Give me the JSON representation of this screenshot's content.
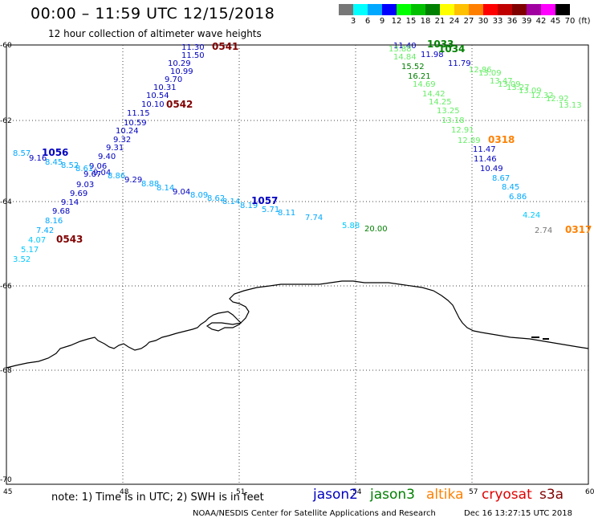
{
  "title": "00:00 – 11:59 UTC 12/15/2018",
  "subtitle": "12 hour collection of altimeter wave heights",
  "scale": {
    "labels": [
      "3",
      "6",
      "9",
      "12",
      "15",
      "18",
      "21",
      "24",
      "27",
      "30",
      "33",
      "36",
      "39",
      "42",
      "45",
      "70",
      "(ft)"
    ],
    "colors": [
      "#777777",
      "#00ffff",
      "#00a8ff",
      "#0000ff",
      "#00ff00",
      "#00c000",
      "#008000",
      "#ffff00",
      "#ffc000",
      "#ff8000",
      "#ff0000",
      "#c00000",
      "#800000",
      "#a000a0",
      "#ff00ff",
      "#000000"
    ]
  },
  "axes": {
    "lat_ticks": [
      "-60",
      "-62",
      "-64",
      "-66",
      "-68",
      "-70"
    ],
    "lon_ticks": [
      "45",
      "48",
      "51",
      "54",
      "57",
      "60"
    ]
  },
  "tracks": [
    {
      "time": "0541",
      "time_color": "#800000",
      "points": [
        {
          "v": "11.30",
          "c": "#0000c0"
        },
        {
          "v": "11.50",
          "c": "#0000c0"
        },
        {
          "v": "10.29",
          "c": "#0000c0"
        },
        {
          "v": "10.99",
          "c": "#0000c0"
        },
        {
          "v": "9.70",
          "c": "#0000c0"
        },
        {
          "v": "10.31",
          "c": "#0000c0"
        },
        {
          "v": "10.54",
          "c": "#0000c0"
        },
        {
          "v": "10.10",
          "c": "#0000c0"
        }
      ]
    },
    {
      "time": "0542",
      "time_color": "#800000",
      "points": [
        {
          "v": "11.15",
          "c": "#0000c0"
        },
        {
          "v": "10.59",
          "c": "#0000c0"
        },
        {
          "v": "10.24",
          "c": "#0000c0"
        },
        {
          "v": "9.32",
          "c": "#0000c0"
        },
        {
          "v": "9.31",
          "c": "#0000c0"
        },
        {
          "v": "9.40",
          "c": "#0000c0"
        },
        {
          "v": "9.06",
          "c": "#0000c0"
        },
        {
          "v": "9.67",
          "c": "#0000c0"
        },
        {
          "v": "9.03",
          "c": "#0000c0"
        },
        {
          "v": "9.69",
          "c": "#0000c0"
        },
        {
          "v": "9.14",
          "c": "#0000c0"
        },
        {
          "v": "9.68",
          "c": "#0000c0"
        }
      ]
    },
    {
      "time": "0543",
      "time_color": "#800000",
      "points": [
        {
          "v": "8.16",
          "c": "#00a8ff"
        },
        {
          "v": "7.42",
          "c": "#00a8ff"
        },
        {
          "v": "4.07",
          "c": "#00c8ff"
        },
        {
          "v": "5.17",
          "c": "#00c8ff"
        },
        {
          "v": "3.52",
          "c": "#00c8ff"
        }
      ]
    },
    {
      "time": "1056",
      "time_color": "#0000c0",
      "points": [
        {
          "v": "8.57",
          "c": "#00a8ff"
        },
        {
          "v": "9.16",
          "c": "#0000c0"
        },
        {
          "v": "8.45",
          "c": "#00a8ff"
        },
        {
          "v": "8.52",
          "c": "#00a8ff"
        },
        {
          "v": "8.61",
          "c": "#00a8ff"
        },
        {
          "v": "9.04",
          "c": "#0000c0"
        },
        {
          "v": "8.86",
          "c": "#00a8ff"
        },
        {
          "v": "9.29",
          "c": "#0000c0"
        },
        {
          "v": "8.88",
          "c": "#00a8ff"
        },
        {
          "v": "8.14",
          "c": "#00a8ff"
        },
        {
          "v": "9.04",
          "c": "#0000c0"
        },
        {
          "v": "8.09",
          "c": "#00a8ff"
        },
        {
          "v": "8.62",
          "c": "#00a8ff"
        },
        {
          "v": "8.14",
          "c": "#00a8ff"
        }
      ]
    },
    {
      "time": "1057",
      "time_color": "#0000c0",
      "points": [
        {
          "v": "8.19",
          "c": "#00a8ff"
        },
        {
          "v": "5.71",
          "c": "#00a8ff"
        },
        {
          "v": "8.11",
          "c": "#00a8ff"
        },
        {
          "v": "7.74",
          "c": "#00a8ff"
        },
        {
          "v": "5.88",
          "c": "#00c8ff"
        },
        {
          "v": "20.00",
          "c": "#008000"
        }
      ]
    },
    {
      "time": "1033",
      "time_color": "#008000",
      "points": [
        {
          "v": "11.40",
          "c": "#0000c0"
        },
        {
          "v": "13.88",
          "c": "#66ee66"
        },
        {
          "v": "14.84",
          "c": "#66ee66"
        },
        {
          "v": "15.52",
          "c": "#008000"
        },
        {
          "v": "16.21",
          "c": "#008000"
        },
        {
          "v": "14.69",
          "c": "#66ee66"
        },
        {
          "v": "14.42",
          "c": "#66ee66"
        },
        {
          "v": "14.25",
          "c": "#66ee66"
        },
        {
          "v": "13.25",
          "c": "#66ee66"
        },
        {
          "v": "13.18",
          "c": "#66ee66"
        },
        {
          "v": "12.91",
          "c": "#66ee66"
        },
        {
          "v": "12.89",
          "c": "#66ee66"
        }
      ]
    },
    {
      "time": "1034",
      "time_color": "#008000",
      "points": [
        {
          "v": "11.98",
          "c": "#0000c0"
        },
        {
          "v": "11.79",
          "c": "#0000c0"
        },
        {
          "v": "12.86",
          "c": "#66ee66"
        },
        {
          "v": "13.09",
          "c": "#66ee66"
        },
        {
          "v": "13.47",
          "c": "#66ee66"
        },
        {
          "v": "13.09",
          "c": "#66ee66"
        },
        {
          "v": "13.27",
          "c": "#66ee66"
        },
        {
          "v": "13.09",
          "c": "#66ee66"
        },
        {
          "v": "12.32",
          "c": "#66ee66"
        },
        {
          "v": "12.92",
          "c": "#66ee66"
        },
        {
          "v": "13.13",
          "c": "#66ee66"
        }
      ]
    },
    {
      "time": "0318",
      "time_color": "#ff8000",
      "points": [
        {
          "v": "11.47",
          "c": "#0000c0"
        },
        {
          "v": "11.46",
          "c": "#0000c0"
        },
        {
          "v": "10.49",
          "c": "#0000c0"
        },
        {
          "v": "8.67",
          "c": "#00a8ff"
        },
        {
          "v": "8.45",
          "c": "#00a8ff"
        },
        {
          "v": "6.86",
          "c": "#00a8ff"
        },
        {
          "v": "4.24",
          "c": "#00c8ff"
        }
      ]
    },
    {
      "time": "0317",
      "time_color": "#ff8000",
      "points": [
        {
          "v": "2.74",
          "c": "#777777"
        }
      ]
    }
  ],
  "footer": {
    "note": "note: 1) Time is in UTC; 2) SWH is in feet",
    "satellites": [
      {
        "name": "jason2",
        "color": "#0000c0"
      },
      {
        "name": "jason3",
        "color": "#008000"
      },
      {
        "name": "altika",
        "color": "#ff8000"
      },
      {
        "name": "cryosat",
        "color": "#e00000"
      },
      {
        "name": "s3a",
        "color": "#800000"
      }
    ],
    "credit": "NOAA/NESDIS Center for Satellite Applications and Research",
    "timestamp": "Dec 16 13:27:15 UTC 2018"
  }
}
